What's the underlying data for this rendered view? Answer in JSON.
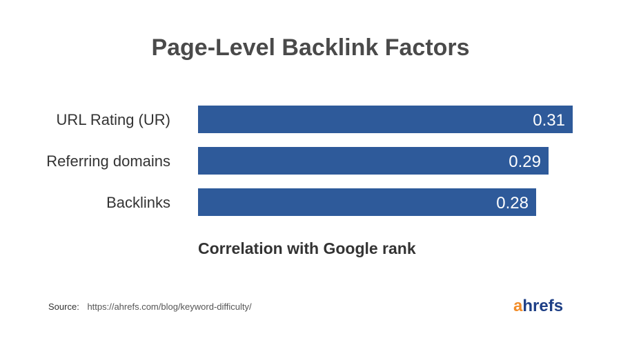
{
  "chart_data": {
    "type": "bar",
    "orientation": "horizontal",
    "title": "Page-Level Backlink Factors",
    "xlabel": "Correlation with Google rank",
    "ylabel": "",
    "categories": [
      "URL Rating (UR)",
      "Referring domains",
      "Backlinks"
    ],
    "values": [
      0.31,
      0.29,
      0.28
    ],
    "value_labels": [
      "0.31",
      "0.29",
      "0.28"
    ],
    "xlim": [
      0,
      0.31
    ],
    "grid": false,
    "bar_color": "#2e5a9a"
  },
  "source": {
    "label": "Source:",
    "url": "https://ahrefs.com/blog/keyword-difficulty/"
  },
  "logo": {
    "first_letter": "a",
    "rest": "hrefs",
    "colors": {
      "first_letter": "#f28c28",
      "rest": "#1e3f86"
    }
  }
}
